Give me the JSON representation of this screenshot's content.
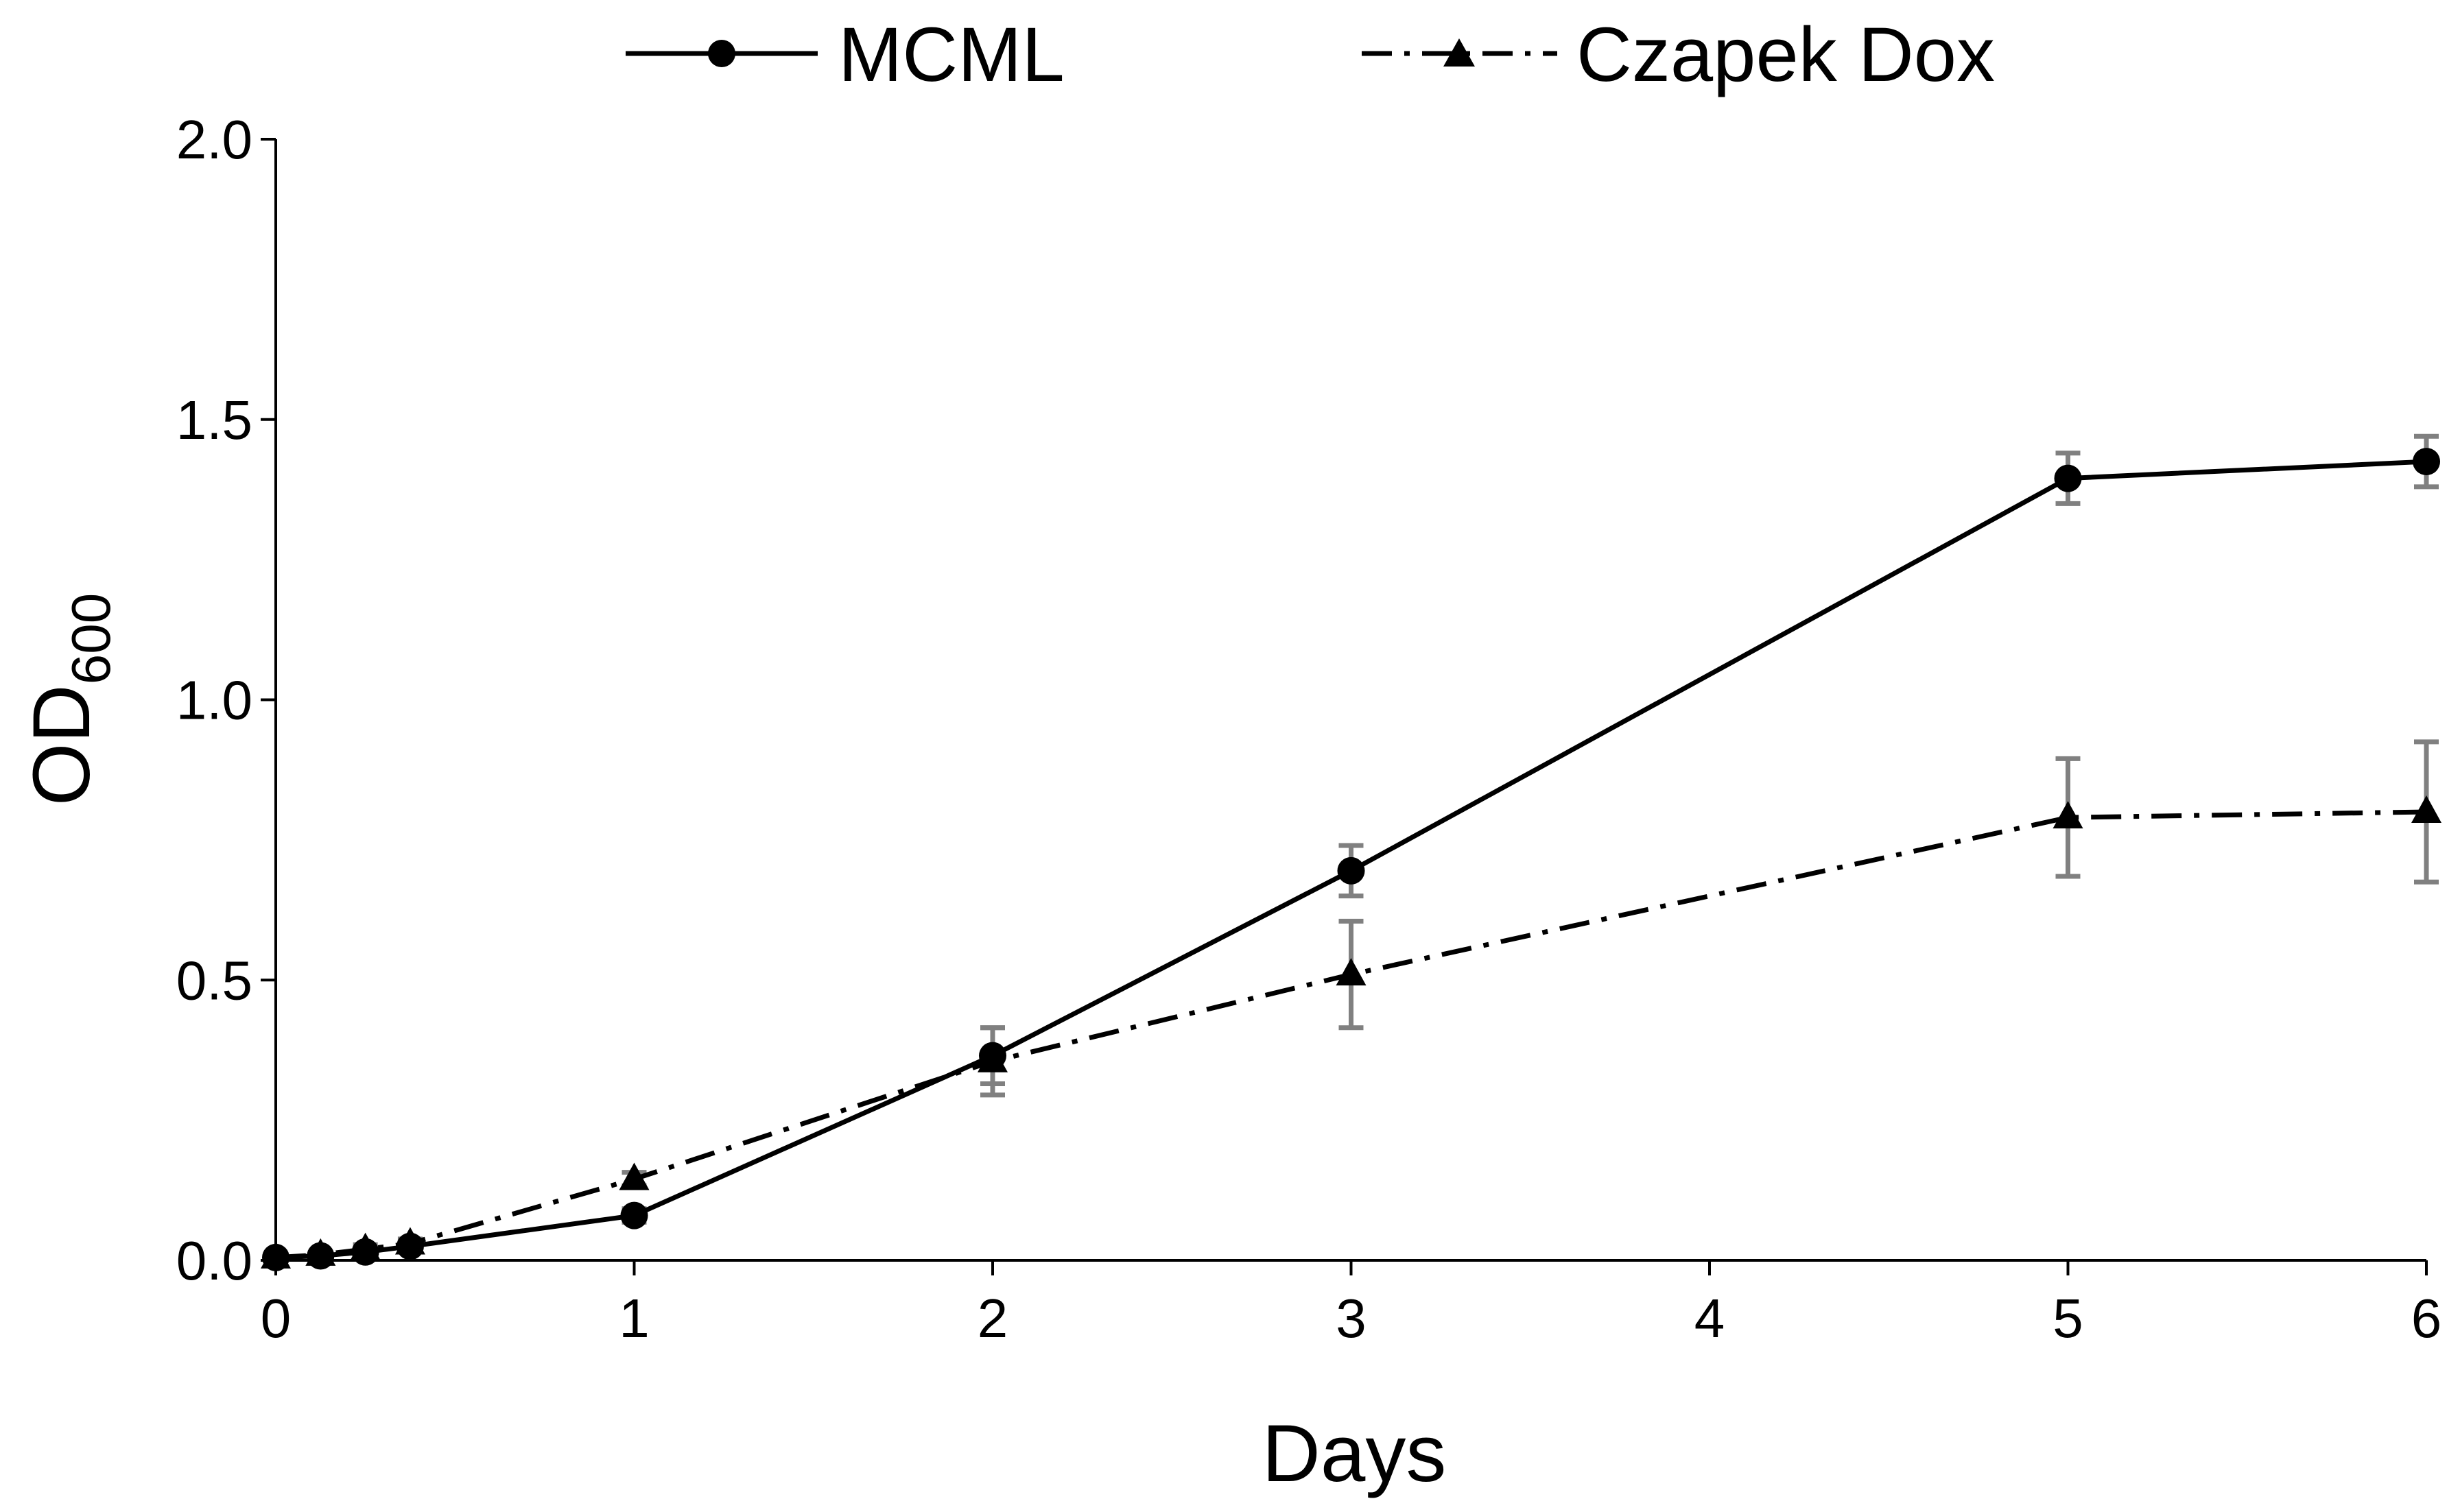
{
  "chart_data": {
    "type": "line",
    "title": "",
    "xlabel": "Days",
    "ylabel": "OD",
    "ylabel_subscript": "600",
    "xlim": [
      0,
      6
    ],
    "ylim": [
      0,
      2.0
    ],
    "x_ticks": [
      "0",
      "1",
      "2",
      "3",
      "4",
      "5",
      "6"
    ],
    "y_ticks": [
      "0.0",
      "0.5",
      "1.0",
      "1.5",
      "2.0"
    ],
    "grid": false,
    "legend_position": "top-center",
    "x": [
      0,
      0.125,
      0.25,
      0.375,
      1,
      2,
      3,
      5,
      6
    ],
    "series": [
      {
        "name": "MCML",
        "line_style": "solid",
        "marker": "circle",
        "color": "#000000",
        "values": [
          0.005,
          0.008,
          0.015,
          0.025,
          0.08,
          0.365,
          0.695,
          1.395,
          1.425
        ],
        "errors": [
          0.003,
          0.003,
          0.005,
          0.008,
          0.012,
          0.05,
          0.045,
          0.045,
          0.045
        ]
      },
      {
        "name": "Czapek Dox",
        "line_style": "dash-dot",
        "marker": "triangle",
        "color": "#000000",
        "values": [
          0.005,
          0.01,
          0.02,
          0.03,
          0.145,
          0.355,
          0.51,
          0.79,
          0.8
        ],
        "errors": [
          0.003,
          0.004,
          0.008,
          0.008,
          0.012,
          0.06,
          0.095,
          0.105,
          0.125
        ]
      }
    ],
    "error_bar_color": "#808080"
  }
}
